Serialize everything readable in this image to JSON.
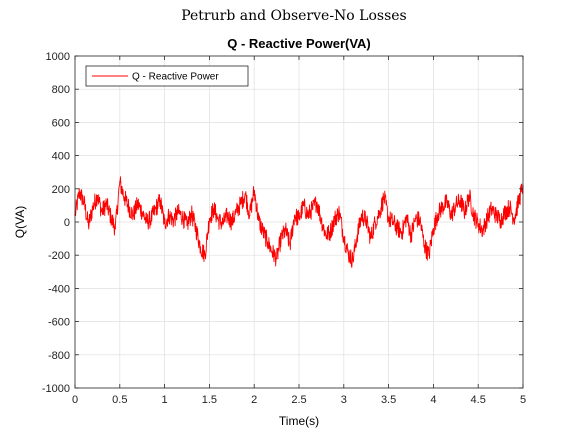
{
  "figure": {
    "suptitle": "Petrurb and Observe-No Losses"
  },
  "chart_data": {
    "type": "line",
    "title": "Q - Reactive Power(VA)",
    "xlabel": "Time(s)",
    "ylabel": "Q(VA)",
    "xlim": [
      0,
      5
    ],
    "ylim": [
      -1000,
      1000
    ],
    "xticks": [
      0,
      0.5,
      1,
      1.5,
      2,
      2.5,
      3,
      3.5,
      4,
      4.5,
      5
    ],
    "xtick_labels": [
      "0",
      "0.5",
      "1",
      "1.5",
      "2",
      "2.5",
      "3",
      "3.5",
      "4",
      "4.5",
      "5"
    ],
    "yticks": [
      -1000,
      -800,
      -600,
      -400,
      -200,
      0,
      200,
      400,
      600,
      800,
      1000
    ],
    "ytick_labels": [
      "-1000",
      "-800",
      "-600",
      "-400",
      "-200",
      "0",
      "200",
      "400",
      "600",
      "800",
      "1000"
    ],
    "grid": true,
    "legend_position": "top-left",
    "series": [
      {
        "name": "Q - Reactive Power",
        "color": "#ff0000",
        "x": [
          0,
          0.05,
          0.1,
          0.15,
          0.2,
          0.25,
          0.3,
          0.35,
          0.4,
          0.45,
          0.5,
          0.55,
          0.6,
          0.65,
          0.7,
          0.75,
          0.8,
          0.85,
          0.9,
          0.95,
          1.0,
          1.05,
          1.1,
          1.15,
          1.2,
          1.25,
          1.3,
          1.35,
          1.4,
          1.45,
          1.5,
          1.55,
          1.6,
          1.65,
          1.7,
          1.75,
          1.8,
          1.85,
          1.9,
          1.95,
          2.0,
          2.05,
          2.1,
          2.15,
          2.2,
          2.25,
          2.3,
          2.35,
          2.4,
          2.45,
          2.5,
          2.55,
          2.6,
          2.65,
          2.7,
          2.75,
          2.8,
          2.85,
          2.9,
          2.95,
          3.0,
          3.05,
          3.1,
          3.15,
          3.2,
          3.25,
          3.3,
          3.35,
          3.4,
          3.45,
          3.5,
          3.55,
          3.6,
          3.65,
          3.7,
          3.75,
          3.8,
          3.85,
          3.9,
          3.95,
          4.0,
          4.05,
          4.1,
          4.15,
          4.2,
          4.25,
          4.3,
          4.35,
          4.4,
          4.45,
          4.5,
          4.55,
          4.6,
          4.65,
          4.7,
          4.75,
          4.8,
          4.85,
          4.9,
          4.95,
          5.0
        ],
        "values": [
          40,
          180,
          120,
          -20,
          90,
          160,
          60,
          110,
          30,
          -40,
          240,
          150,
          90,
          40,
          110,
          60,
          0,
          20,
          80,
          130,
          -10,
          40,
          10,
          60,
          30,
          -20,
          50,
          -40,
          -150,
          -200,
          20,
          80,
          10,
          -10,
          40,
          0,
          60,
          110,
          170,
          40,
          190,
          10,
          -60,
          -120,
          -180,
          -220,
          -100,
          -50,
          -140,
          40,
          20,
          100,
          40,
          80,
          120,
          10,
          -80,
          -60,
          20,
          60,
          -90,
          -190,
          -230,
          -80,
          40,
          10,
          -100,
          0,
          60,
          150,
          20,
          0,
          -40,
          -60,
          30,
          -80,
          20,
          10,
          -140,
          -200,
          -40,
          50,
          90,
          120,
          40,
          100,
          130,
          60,
          160,
          40,
          -10,
          -50,
          20,
          80,
          40,
          10,
          60,
          90,
          20,
          120,
          220
        ]
      }
    ]
  }
}
